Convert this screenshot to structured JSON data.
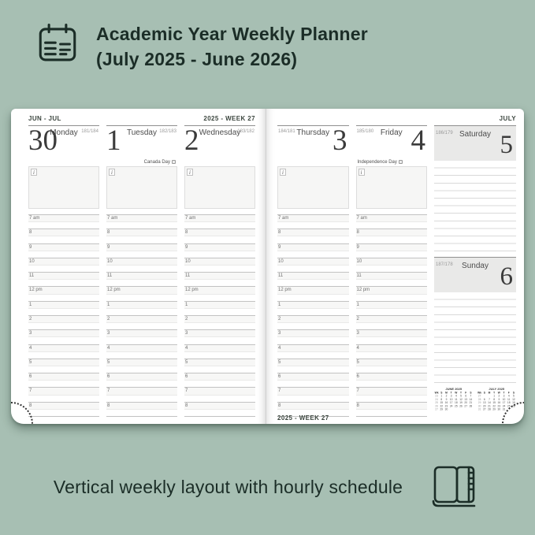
{
  "colors": {
    "background": "#a7bfb3",
    "ink": "#1b2d27",
    "page": "#ffffff",
    "weekend_header": "#e9e9e8"
  },
  "header": {
    "title_line1": "Academic Year Weekly Planner",
    "title_line2": "(July 2025 - June 2026)"
  },
  "caption": {
    "text": "Vertical weekly layout with hourly schedule"
  },
  "planner": {
    "info_glyph": "i",
    "left_page": {
      "month_label": "JUN - JUL",
      "week_label": "2025 - WEEK 27",
      "days": [
        {
          "number": "30",
          "name": "Monday",
          "counter": "181/184",
          "holiday": ""
        },
        {
          "number": "1",
          "name": "Tuesday",
          "counter": "182/183",
          "holiday": "Canada Day"
        },
        {
          "number": "2",
          "name": "Wednesday",
          "counter": "183/182",
          "holiday": ""
        }
      ]
    },
    "right_page": {
      "month_label": "JULY",
      "week_label": "2025 - WEEK 27",
      "days": [
        {
          "number": "3",
          "name": "Thursday",
          "counter": "184/181",
          "holiday": ""
        },
        {
          "number": "4",
          "name": "Friday",
          "counter": "185/180",
          "holiday": "Independence Day"
        }
      ],
      "weekend": [
        {
          "number": "5",
          "name": "Saturday",
          "counter": "186/179"
        },
        {
          "number": "6",
          "name": "Sunday",
          "counter": "187/178"
        }
      ]
    },
    "hours": [
      "7 am",
      "8",
      "9",
      "10",
      "11",
      "12 pm",
      "1",
      "2",
      "3",
      "4",
      "5",
      "6",
      "7",
      "8"
    ],
    "mini_calendars": [
      {
        "title": "JUNE 2025",
        "weekday_header": [
          "Wk",
          "S",
          "M",
          "T",
          "W",
          "T",
          "F",
          "S"
        ],
        "rows": [
          [
            "23",
            "1",
            "2",
            "3",
            "4",
            "5",
            "6",
            "7"
          ],
          [
            "24",
            "8",
            "9",
            "10",
            "11",
            "12",
            "13",
            "14"
          ],
          [
            "25",
            "15",
            "16",
            "17",
            "18",
            "19",
            "20",
            "21"
          ],
          [
            "26",
            "22",
            "23",
            "24",
            "25",
            "26",
            "27",
            "28"
          ],
          [
            "27",
            "29",
            "30",
            "",
            "",
            "",
            "",
            ""
          ]
        ]
      },
      {
        "title": "JULY 2025",
        "weekday_header": [
          "Wk",
          "S",
          "M",
          "T",
          "W",
          "T",
          "F",
          "S"
        ],
        "rows": [
          [
            "27",
            "",
            "",
            "1",
            "2",
            "3",
            "4",
            "5"
          ],
          [
            "28",
            "6",
            "7",
            "8",
            "9",
            "10",
            "11",
            "12"
          ],
          [
            "29",
            "13",
            "14",
            "15",
            "16",
            "17",
            "18",
            "19"
          ],
          [
            "30",
            "20",
            "21",
            "22",
            "23",
            "24",
            "25",
            "26"
          ],
          [
            "31",
            "27",
            "28",
            "29",
            "30",
            "31",
            "",
            ""
          ]
        ]
      }
    ]
  }
}
